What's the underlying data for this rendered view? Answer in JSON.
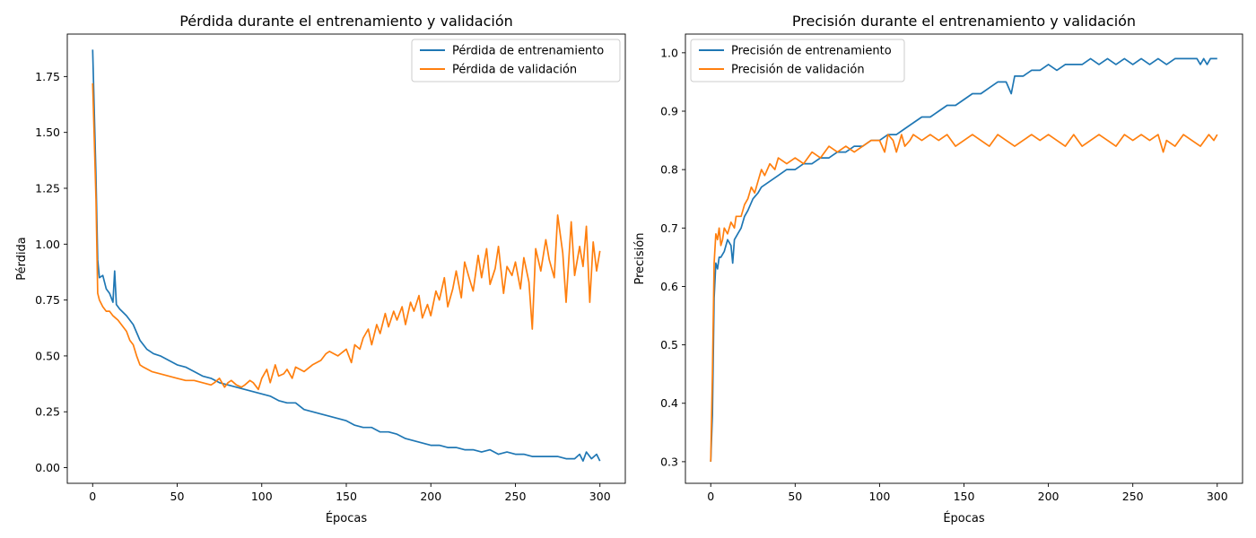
{
  "colors": {
    "train": "#1f77b4",
    "val": "#ff7f0e"
  },
  "chart_data": [
    {
      "type": "line",
      "title": "Pérdida durante el entrenamiento y validación",
      "xlabel": "Épocas",
      "ylabel": "Pérdida",
      "xlim": [
        -15,
        315
      ],
      "ylim": [
        -0.07,
        1.94
      ],
      "xticks": [
        "0",
        "50",
        "100",
        "150",
        "200",
        "250",
        "300"
      ],
      "yticks": [
        "0.00",
        "0.25",
        "0.50",
        "0.75",
        "1.00",
        "1.25",
        "1.50",
        "1.75"
      ],
      "legend_position": "top-right",
      "grid": false,
      "series": [
        {
          "name": "Pérdida de entrenamiento",
          "color": "#1f77b4",
          "x": [
            0,
            2,
            3,
            4,
            6,
            8,
            10,
            12,
            13,
            14,
            16,
            20,
            24,
            28,
            32,
            36,
            40,
            45,
            50,
            55,
            60,
            65,
            70,
            75,
            80,
            85,
            90,
            95,
            100,
            105,
            110,
            115,
            120,
            125,
            130,
            135,
            140,
            145,
            150,
            155,
            160,
            165,
            170,
            175,
            180,
            185,
            190,
            195,
            200,
            205,
            210,
            215,
            220,
            225,
            230,
            235,
            240,
            245,
            250,
            255,
            260,
            265,
            270,
            275,
            280,
            285,
            288,
            290,
            292,
            295,
            298,
            300
          ],
          "y": [
            1.87,
            1.3,
            0.93,
            0.85,
            0.86,
            0.8,
            0.78,
            0.74,
            0.88,
            0.73,
            0.71,
            0.68,
            0.64,
            0.57,
            0.53,
            0.51,
            0.5,
            0.48,
            0.46,
            0.45,
            0.43,
            0.41,
            0.4,
            0.38,
            0.37,
            0.36,
            0.35,
            0.34,
            0.33,
            0.32,
            0.3,
            0.29,
            0.29,
            0.26,
            0.25,
            0.24,
            0.23,
            0.22,
            0.21,
            0.19,
            0.18,
            0.18,
            0.16,
            0.16,
            0.15,
            0.13,
            0.12,
            0.11,
            0.1,
            0.1,
            0.09,
            0.09,
            0.08,
            0.08,
            0.07,
            0.08,
            0.06,
            0.07,
            0.06,
            0.06,
            0.05,
            0.05,
            0.05,
            0.05,
            0.04,
            0.04,
            0.06,
            0.03,
            0.07,
            0.04,
            0.06,
            0.03
          ]
        },
        {
          "name": "Pérdida de validación",
          "color": "#ff7f0e",
          "x": [
            0,
            2,
            3,
            4,
            6,
            8,
            10,
            12,
            15,
            18,
            20,
            22,
            24,
            26,
            28,
            30,
            35,
            40,
            45,
            50,
            55,
            60,
            65,
            70,
            72,
            75,
            78,
            80,
            82,
            85,
            88,
            90,
            93,
            95,
            98,
            100,
            103,
            105,
            108,
            110,
            113,
            115,
            118,
            120,
            125,
            130,
            135,
            138,
            140,
            145,
            150,
            153,
            155,
            158,
            160,
            163,
            165,
            168,
            170,
            173,
            175,
            178,
            180,
            183,
            185,
            188,
            190,
            193,
            195,
            198,
            200,
            203,
            205,
            208,
            210,
            213,
            215,
            218,
            220,
            223,
            225,
            228,
            230,
            233,
            235,
            238,
            240,
            243,
            245,
            248,
            250,
            253,
            255,
            258,
            260,
            262,
            265,
            268,
            270,
            273,
            275,
            278,
            280,
            283,
            285,
            288,
            290,
            292,
            294,
            296,
            298,
            300
          ],
          "y": [
            1.72,
            1.2,
            0.78,
            0.75,
            0.72,
            0.7,
            0.7,
            0.68,
            0.66,
            0.63,
            0.61,
            0.57,
            0.55,
            0.5,
            0.46,
            0.45,
            0.43,
            0.42,
            0.41,
            0.4,
            0.39,
            0.39,
            0.38,
            0.37,
            0.38,
            0.4,
            0.36,
            0.38,
            0.39,
            0.37,
            0.36,
            0.37,
            0.39,
            0.38,
            0.35,
            0.4,
            0.44,
            0.38,
            0.46,
            0.41,
            0.42,
            0.44,
            0.4,
            0.45,
            0.43,
            0.46,
            0.48,
            0.51,
            0.52,
            0.5,
            0.53,
            0.47,
            0.55,
            0.53,
            0.58,
            0.62,
            0.55,
            0.64,
            0.6,
            0.69,
            0.63,
            0.7,
            0.66,
            0.72,
            0.64,
            0.74,
            0.7,
            0.77,
            0.67,
            0.73,
            0.68,
            0.79,
            0.75,
            0.85,
            0.72,
            0.8,
            0.88,
            0.76,
            0.92,
            0.84,
            0.79,
            0.95,
            0.85,
            0.98,
            0.82,
            0.89,
            0.99,
            0.78,
            0.9,
            0.86,
            0.92,
            0.8,
            0.94,
            0.83,
            0.62,
            0.98,
            0.88,
            1.02,
            0.93,
            0.85,
            1.13,
            0.96,
            0.74,
            1.1,
            0.86,
            0.99,
            0.9,
            1.08,
            0.74,
            1.01,
            0.88,
            0.97
          ]
        }
      ]
    },
    {
      "type": "line",
      "title": "Precisión durante el entrenamiento y validación",
      "xlabel": "Épocas",
      "ylabel": "Precisión",
      "xlim": [
        -15,
        315
      ],
      "ylim": [
        0.263,
        1.032
      ],
      "xticks": [
        "0",
        "50",
        "100",
        "150",
        "200",
        "250",
        "300"
      ],
      "yticks": [
        "0.3",
        "0.4",
        "0.5",
        "0.6",
        "0.7",
        "0.8",
        "0.9",
        "1.0"
      ],
      "legend_position": "top-left",
      "grid": false,
      "series": [
        {
          "name": "Precisión de entrenamiento",
          "color": "#1f77b4",
          "x": [
            0,
            1,
            2,
            3,
            4,
            5,
            6,
            8,
            10,
            12,
            13,
            14,
            16,
            18,
            20,
            22,
            25,
            28,
            30,
            35,
            40,
            45,
            50,
            55,
            60,
            65,
            70,
            75,
            80,
            85,
            90,
            95,
            100,
            105,
            110,
            115,
            120,
            125,
            130,
            135,
            140,
            145,
            150,
            155,
            160,
            165,
            170,
            175,
            178,
            180,
            185,
            190,
            195,
            200,
            205,
            210,
            215,
            220,
            225,
            230,
            235,
            240,
            245,
            250,
            255,
            260,
            265,
            270,
            275,
            280,
            285,
            288,
            290,
            292,
            294,
            296,
            298,
            300
          ],
          "y": [
            0.3,
            0.38,
            0.58,
            0.64,
            0.63,
            0.65,
            0.65,
            0.66,
            0.68,
            0.67,
            0.64,
            0.68,
            0.69,
            0.7,
            0.72,
            0.73,
            0.75,
            0.76,
            0.77,
            0.78,
            0.79,
            0.8,
            0.8,
            0.81,
            0.81,
            0.82,
            0.82,
            0.83,
            0.83,
            0.84,
            0.84,
            0.85,
            0.85,
            0.86,
            0.86,
            0.87,
            0.88,
            0.89,
            0.89,
            0.9,
            0.91,
            0.91,
            0.92,
            0.93,
            0.93,
            0.94,
            0.95,
            0.95,
            0.93,
            0.96,
            0.96,
            0.97,
            0.97,
            0.98,
            0.97,
            0.98,
            0.98,
            0.98,
            0.99,
            0.98,
            0.99,
            0.98,
            0.99,
            0.98,
            0.99,
            0.98,
            0.99,
            0.98,
            0.99,
            0.99,
            0.99,
            0.99,
            0.98,
            0.99,
            0.98,
            0.99,
            0.99,
            0.99
          ]
        },
        {
          "name": "Precisión de validación",
          "color": "#ff7f0e",
          "x": [
            0,
            1,
            2,
            3,
            4,
            5,
            6,
            7,
            8,
            10,
            12,
            14,
            15,
            18,
            20,
            22,
            24,
            26,
            28,
            30,
            32,
            35,
            38,
            40,
            45,
            50,
            55,
            60,
            65,
            70,
            75,
            80,
            85,
            90,
            95,
            100,
            103,
            105,
            108,
            110,
            113,
            115,
            118,
            120,
            125,
            130,
            135,
            140,
            145,
            150,
            155,
            160,
            165,
            170,
            175,
            180,
            185,
            190,
            195,
            200,
            205,
            210,
            215,
            220,
            225,
            230,
            235,
            240,
            245,
            250,
            255,
            260,
            265,
            268,
            270,
            275,
            280,
            285,
            290,
            295,
            298,
            300
          ],
          "y": [
            0.3,
            0.45,
            0.64,
            0.69,
            0.68,
            0.7,
            0.67,
            0.68,
            0.7,
            0.69,
            0.71,
            0.7,
            0.72,
            0.72,
            0.74,
            0.75,
            0.77,
            0.76,
            0.78,
            0.8,
            0.79,
            0.81,
            0.8,
            0.82,
            0.81,
            0.82,
            0.81,
            0.83,
            0.82,
            0.84,
            0.83,
            0.84,
            0.83,
            0.84,
            0.85,
            0.85,
            0.83,
            0.86,
            0.85,
            0.83,
            0.86,
            0.84,
            0.85,
            0.86,
            0.85,
            0.86,
            0.85,
            0.86,
            0.84,
            0.85,
            0.86,
            0.85,
            0.84,
            0.86,
            0.85,
            0.84,
            0.85,
            0.86,
            0.85,
            0.86,
            0.85,
            0.84,
            0.86,
            0.84,
            0.85,
            0.86,
            0.85,
            0.84,
            0.86,
            0.85,
            0.86,
            0.85,
            0.86,
            0.83,
            0.85,
            0.84,
            0.86,
            0.85,
            0.84,
            0.86,
            0.85,
            0.86
          ]
        }
      ]
    }
  ]
}
